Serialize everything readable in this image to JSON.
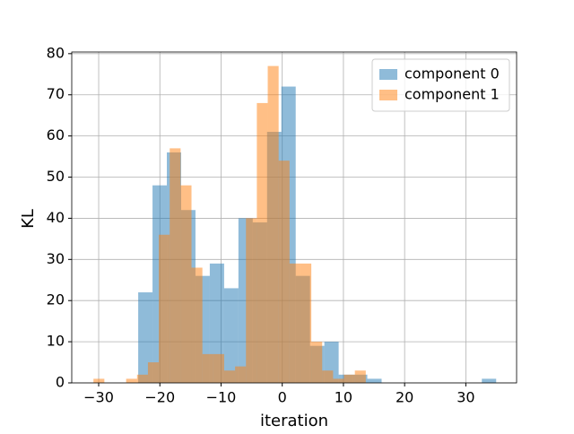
{
  "chart_data": {
    "type": "histogram",
    "xlabel": "iteration",
    "ylabel": "KL",
    "xlim": [
      -34.4,
      38.3
    ],
    "ylim": [
      0,
      80.4
    ],
    "xticks": [
      {
        "value": -30,
        "label": "−30"
      },
      {
        "value": -20,
        "label": "−20"
      },
      {
        "value": -10,
        "label": "−10"
      },
      0,
      10,
      20,
      30
    ],
    "yticks": [
      0,
      10,
      20,
      30,
      40,
      50,
      60,
      70,
      80
    ],
    "grid": true,
    "legend": "upper right",
    "alpha": 0.5,
    "series": [
      {
        "name": "component 0",
        "color": "#1f77b4",
        "bins": [
          -23.54,
          -21.2,
          -18.86,
          -16.52,
          -14.18,
          -11.84,
          -9.5,
          -7.16,
          -4.82,
          -2.48,
          -0.14,
          2.2,
          4.54,
          6.88,
          9.22,
          11.56,
          13.9,
          16.24,
          18.58,
          20.92,
          23.26,
          25.6,
          27.94,
          30.28,
          32.62,
          34.96
        ],
        "values": [
          22,
          48,
          56,
          42,
          26,
          29,
          23,
          40,
          39,
          61,
          72,
          26,
          9,
          10,
          2,
          2,
          1,
          0,
          0,
          0,
          0,
          0,
          0,
          0,
          1
        ]
      },
      {
        "name": "component 1",
        "color": "#ff7f0e",
        "bins": [
          -30.85,
          -29.07,
          -27.29,
          -25.51,
          -23.73,
          -21.95,
          -20.17,
          -18.39,
          -16.61,
          -14.83,
          -13.05,
          -11.27,
          -9.49,
          -7.71,
          -5.93,
          -4.15,
          -2.37,
          -0.59,
          1.19,
          2.97,
          4.75,
          6.53,
          8.31,
          10.09,
          11.87,
          13.65
        ],
        "values": [
          1,
          0,
          0,
          1,
          2,
          5,
          36,
          57,
          48,
          28,
          7,
          7,
          3,
          4,
          40,
          68,
          77,
          54,
          29,
          29,
          10,
          3,
          1,
          2,
          3
        ]
      }
    ]
  }
}
